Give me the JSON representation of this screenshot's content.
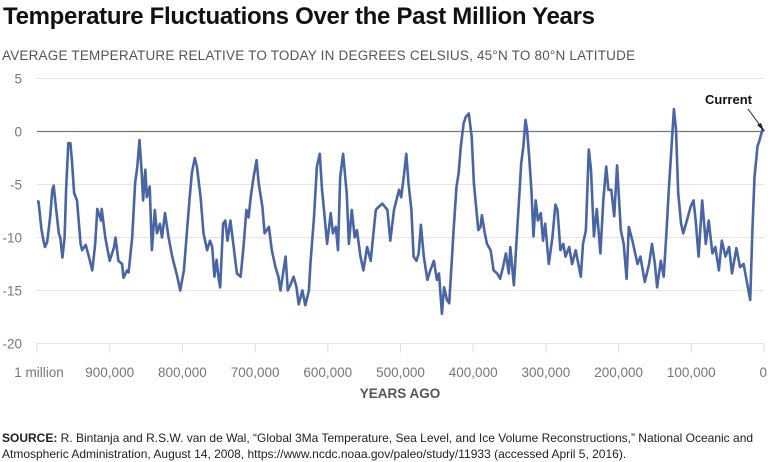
{
  "title": "Temperature Fluctuations Over the Past Million Years",
  "subtitle": "AVERAGE TEMPERATURE RELATIVE TO TODAY IN DEGREES CELSIUS, 45°N TO 80°N LATITUDE",
  "source_label": "SOURCE:",
  "source_text": " R. Bintanja and R.S.W. van de Wal, “Global 3Ma Temperature, Sea Level, and Ice Volume Reconstructions,” National Oceanic and Atmospheric Administration, August 14, 2008, https://www.ncdc.noaa.gov/paleo/study/11933 (accessed April 5, 2016).",
  "chart_data": {
    "type": "line",
    "title": "Temperature Fluctuations Over the Past Million Years",
    "xlabel": "YEARS AGO",
    "ylabel": "AVERAGE TEMPERATURE RELATIVE TO TODAY IN DEGREES CELSIUS, 45°N TO 80°N LATITUDE",
    "xlim": [
      1000000,
      0
    ],
    "ylim": [
      -20,
      5
    ],
    "x_reversed": true,
    "grid": true,
    "line_color": "#4a65a3",
    "x_ticks": [
      1000000,
      900000,
      800000,
      700000,
      600000,
      500000,
      400000,
      300000,
      200000,
      100000,
      0
    ],
    "x_tick_labels": [
      "1 million",
      "900,000",
      "800,000",
      "700,000",
      "600,000",
      "500,000",
      "400,000",
      "300,000",
      "200,000",
      "100,000",
      "0"
    ],
    "y_ticks": [
      5,
      0,
      -5,
      -10,
      -15,
      -20
    ],
    "y_tick_labels": [
      "5",
      "0",
      "-5",
      "-10",
      "-15",
      "-20"
    ],
    "annotation": {
      "text": "Current",
      "x": 0,
      "y": 0
    },
    "series": [
      {
        "x_thousand_years_ago": [
          1000,
          998,
          994,
          991,
          989,
          986,
          982,
          979,
          977,
          975,
          970,
          968,
          965,
          962,
          960,
          957,
          954,
          952,
          949,
          945,
          940,
          938,
          933,
          929,
          924,
          920,
          917,
          912,
          911,
          906,
          900,
          894,
          892,
          888,
          883,
          881,
          876,
          874,
          869,
          865,
          862,
          859,
          856,
          854,
          851,
          849,
          845,
          842,
          838,
          835,
          831,
          828,
          824,
          819,
          814,
          807,
          803,
          798,
          794,
          790,
          787,
          783,
          780,
          775,
          771,
          766,
          762,
          759,
          756,
          753,
          750,
          748,
          744,
          741,
          738,
          734,
          730,
          725,
          720,
          716,
          712,
          709,
          706,
          702,
          698,
          695,
          690,
          687,
          684,
          681,
          677,
          672,
          668,
          665,
          661,
          658,
          655,
          651,
          647,
          643,
          640,
          635,
          631,
          626,
          624,
          619,
          615,
          611,
          608,
          606,
          601,
          596,
          593,
          589,
          586,
          583,
          579,
          574,
          571,
          567,
          563,
          560,
          555,
          551,
          546,
          541,
          534,
          530,
          525,
          518,
          514,
          509,
          502,
          499,
          495,
          492,
          489,
          485,
          482,
          478,
          475,
          472,
          468,
          463,
          459,
          454,
          450,
          447,
          443,
          440,
          436,
          433,
          430,
          427,
          423,
          420,
          417,
          413,
          410,
          406,
          402,
          399,
          393,
          390,
          388,
          384,
          381,
          376,
          372,
          367,
          363,
          359,
          355,
          351,
          349,
          344,
          340,
          337,
          334,
          331,
          328,
          326,
          323,
          320,
          317,
          314,
          311,
          307,
          304,
          301,
          296,
          291,
          287,
          284,
          280,
          276,
          273,
          268,
          264,
          259,
          252,
          249,
          245,
          241,
          238,
          234,
          230,
          225,
          221,
          217,
          214,
          210,
          206,
          202,
          197,
          193,
          189,
          186,
          181,
          174,
          170,
          164,
          158,
          154,
          150,
          147,
          142,
          138,
          134,
          131,
          128,
          124,
          121,
          118,
          114,
          111,
          106,
          101,
          97,
          94,
          90,
          85,
          80,
          76,
          71,
          67,
          62,
          58,
          53,
          48,
          44,
          38,
          33,
          28,
          23,
          19,
          16,
          13,
          9,
          6,
          2,
          0
        ],
        "y": [
          -6.6,
          -6.6,
          -9.2,
          -10.3,
          -10.9,
          -10.4,
          -8.1,
          -5.5,
          -5.1,
          -6.5,
          -9.6,
          -10,
          -11.9,
          -10,
          -5.5,
          -1.1,
          -1.1,
          -2.7,
          -5.8,
          -6.5,
          -10.6,
          -11.2,
          -10.7,
          -11.7,
          -13.1,
          -10.6,
          -7.3,
          -8.4,
          -7.3,
          -10,
          -12.2,
          -10.9,
          -10,
          -12.2,
          -12.5,
          -13.8,
          -13.1,
          -13.3,
          -10,
          -4.9,
          -3.3,
          -0.8,
          -3.9,
          -6.5,
          -3.6,
          -6.2,
          -5.2,
          -11.2,
          -7.4,
          -9.6,
          -8.7,
          -10,
          -7.7,
          -10,
          -11.8,
          -13.7,
          -15,
          -13.1,
          -9.6,
          -6.2,
          -3.9,
          -2.5,
          -3.3,
          -6.2,
          -9.6,
          -11.2,
          -10.3,
          -10.9,
          -13.7,
          -12.1,
          -14,
          -14.7,
          -8.7,
          -8.4,
          -10.3,
          -8.4,
          -10.6,
          -13.4,
          -13.7,
          -10.9,
          -7.4,
          -8.1,
          -6.2,
          -4.3,
          -2.7,
          -4.9,
          -7.1,
          -9.6,
          -9.3,
          -9,
          -11.2,
          -12.8,
          -13.7,
          -15,
          -13.1,
          -11.8,
          -15,
          -14.4,
          -13.7,
          -14.7,
          -16.3,
          -15,
          -16.4,
          -15,
          -12.5,
          -8.1,
          -3.3,
          -2.1,
          -5.5,
          -6.8,
          -10.6,
          -7.7,
          -9.6,
          -9,
          -11.2,
          -4.3,
          -2.1,
          -5.8,
          -10.6,
          -7.4,
          -10,
          -9.3,
          -11.8,
          -13.1,
          -10.9,
          -12.2,
          -7.4,
          -7.1,
          -6.8,
          -7.4,
          -10.3,
          -7.4,
          -5.5,
          -6.2,
          -4,
          -2.1,
          -4.9,
          -7.4,
          -11.8,
          -12.2,
          -11.5,
          -8.8,
          -11.8,
          -14,
          -13.1,
          -12.2,
          -14,
          -13.4,
          -17.2,
          -14.7,
          -15.9,
          -16.2,
          -12.8,
          -9.3,
          -5.2,
          -3.9,
          -1.4,
          0.8,
          1.4,
          1.7,
          -0.5,
          -4.9,
          -9.3,
          -9,
          -7.9,
          -9.6,
          -10.6,
          -11.2,
          -13.1,
          -13.4,
          -13.9,
          -12.8,
          -11.5,
          -13.4,
          -10.9,
          -14.5,
          -9.9,
          -6.5,
          -3,
          -1.4,
          1.1,
          0.2,
          -2.4,
          -5.5,
          -9.9,
          -6.5,
          -8.4,
          -7.7,
          -10.3,
          -8.7,
          -12.5,
          -10,
          -6.9,
          -7.4,
          -11.2,
          -10.6,
          -11.8,
          -10.9,
          -12.5,
          -11.2,
          -13.7,
          -10.6,
          -9.3,
          -1.7,
          -3.6,
          -9.9,
          -7.3,
          -11.5,
          -6.5,
          -3.3,
          -5.5,
          -5.5,
          -8,
          -3.2,
          -9.3,
          -10.6,
          -13.9,
          -9,
          -10.3,
          -12.5,
          -11.8,
          -14.2,
          -12.5,
          -10.6,
          -12.5,
          -14.7,
          -12.2,
          -13.7,
          -9.3,
          -5.5,
          -2.4,
          2.1,
          0.2,
          -5.8,
          -8.7,
          -9.6,
          -8.4,
          -7.1,
          -6.5,
          -8.4,
          -11.8,
          -6.5,
          -10.6,
          -8.4,
          -11.5,
          -10.9,
          -13.1,
          -10.3,
          -11.8,
          -10.9,
          -13.4,
          -11,
          -12.8,
          -12.5,
          -14.4,
          -15.9,
          -9.3,
          -4.3,
          -1.4,
          -0.8,
          0.2,
          0
        ]
      }
    ]
  }
}
